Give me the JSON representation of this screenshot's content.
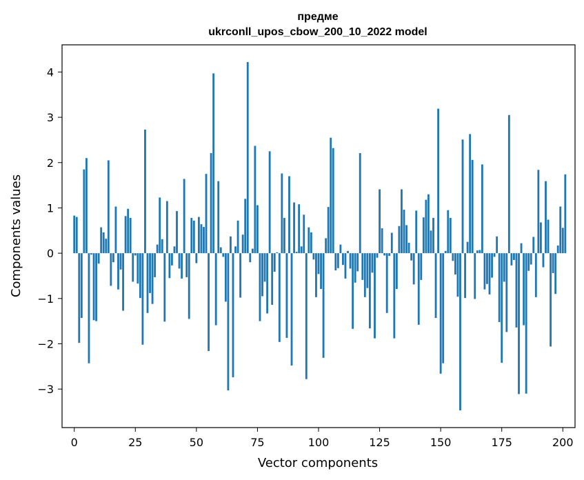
{
  "chart_data": {
    "type": "bar",
    "title_line1": "предме",
    "title_line2": "ukrconll_upos_cbow_200_10_2022 model",
    "xlabel": "Vector components",
    "ylabel": "Components values",
    "xlim": [
      -5,
      205
    ],
    "ylim": [
      -3.85,
      4.6
    ],
    "bar_color": "#1f77b4",
    "x_ticks": [
      0,
      25,
      50,
      75,
      100,
      125,
      150,
      175,
      200
    ],
    "y_ticks": [
      -3,
      -2,
      -1,
      0,
      1,
      2,
      3,
      4
    ],
    "y_tick_labels": [
      "−3",
      "−2",
      "−1",
      "0",
      "1",
      "2",
      "3",
      "4"
    ],
    "values": [
      0.83,
      0.8,
      -1.98,
      -1.43,
      1.85,
      2.1,
      -2.43,
      -0.03,
      -1.48,
      -1.5,
      -0.23,
      0.57,
      0.46,
      0.32,
      2.05,
      -0.72,
      -0.2,
      1.03,
      -0.8,
      -0.36,
      -1.27,
      0.82,
      0.98,
      0.78,
      -0.63,
      -0.05,
      -0.67,
      -0.99,
      -2.02,
      2.73,
      -1.32,
      -0.88,
      -1.12,
      -0.53,
      0.19,
      1.23,
      0.31,
      -1.51,
      1.15,
      -0.55,
      -0.27,
      0.15,
      0.93,
      -0.34,
      -0.56,
      1.64,
      -0.53,
      -1.45,
      0.78,
      0.72,
      -0.22,
      0.8,
      0.64,
      0.58,
      1.75,
      -2.16,
      2.21,
      3.97,
      -1.59,
      1.59,
      0.13,
      -0.08,
      -1.07,
      -3.03,
      0.37,
      -2.74,
      0.15,
      0.72,
      -0.98,
      0.41,
      1.2,
      4.22,
      -0.2,
      0.1,
      2.37,
      1.06,
      -1.5,
      -0.95,
      -0.63,
      -1.33,
      2.25,
      -1.14,
      -0.41,
      0.02,
      -1.96,
      1.76,
      0.78,
      -1.87,
      1.7,
      -2.48,
      1.12,
      0.03,
      1.08,
      0.15,
      0.85,
      -2.78,
      0.57,
      0.46,
      -0.14,
      -0.97,
      -0.46,
      -0.79,
      -2.31,
      0.33,
      1.02,
      2.55,
      2.32,
      -0.38,
      -0.33,
      0.19,
      -0.26,
      -0.56,
      0.05,
      -0.34,
      -1.67,
      -0.65,
      -0.4,
      2.21,
      -0.59,
      -0.97,
      -0.77,
      -1.66,
      -0.43,
      -1.88,
      -0.1,
      1.41,
      0.55,
      -0.05,
      -1.32,
      -0.06,
      0.45,
      -1.88,
      -0.79,
      0.6,
      1.41,
      0.96,
      0.62,
      0.23,
      -0.16,
      -0.69,
      0.94,
      -1.58,
      -0.59,
      0.79,
      1.18,
      1.3,
      0.5,
      0.78,
      -1.43,
      3.19,
      -2.66,
      -2.43,
      0.05,
      0.95,
      0.78,
      -0.17,
      -0.47,
      -0.96,
      -3.47,
      2.51,
      -0.99,
      0.25,
      2.63,
      2.06,
      -1.01,
      0.06,
      0.07,
      1.96,
      -0.8,
      -0.68,
      -0.91,
      -0.54,
      -0.08,
      0.37,
      -1.52,
      -2.42,
      -0.63,
      -1.74,
      3.05,
      -0.27,
      -0.15,
      -1.64,
      -3.11,
      0.22,
      -1.59,
      -3.1,
      -0.39,
      -0.25,
      0.36,
      -0.97,
      1.84,
      0.68,
      -0.31,
      1.59,
      0.74,
      -2.06,
      -0.44,
      -0.9,
      0.17,
      1.03,
      0.56,
      1.74
    ]
  }
}
